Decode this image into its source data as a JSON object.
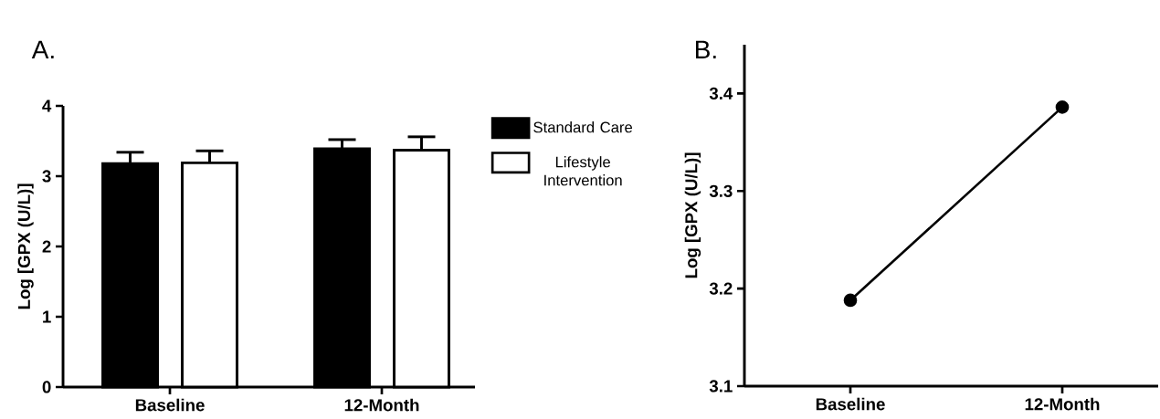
{
  "chart_data": [
    {
      "type": "bar",
      "title": "A.",
      "ylabel": "Log [GPX (U/L)]",
      "categories": [
        "Baseline",
        "12-Month"
      ],
      "ylim": [
        0,
        4
      ],
      "yticks": [
        0,
        1,
        2,
        3,
        4
      ],
      "legend": "right",
      "series": [
        {
          "name": "Standard Care",
          "color": "#000000",
          "values": [
            3.18,
            3.39
          ],
          "errors": [
            [
              3.18,
              3.34
            ],
            [
              3.39,
              3.52
            ]
          ]
        },
        {
          "name": "Lifestyle Intervention",
          "color": "#ffffff",
          "values": [
            3.19,
            3.37
          ],
          "errors": [
            [
              3.19,
              3.36
            ],
            [
              3.37,
              3.56
            ]
          ]
        }
      ]
    },
    {
      "type": "line",
      "title": "B.",
      "ylabel": "Log [GPX (U/L)]",
      "categories": [
        "Baseline",
        "12-Month"
      ],
      "ylim": [
        3.1,
        3.45
      ],
      "yticks": [
        3.1,
        3.2,
        3.3,
        3.4
      ],
      "marker": "circle",
      "line_style": "solid",
      "series": [
        {
          "color": "#000000",
          "values": [
            3.188,
            3.386
          ]
        }
      ]
    }
  ]
}
